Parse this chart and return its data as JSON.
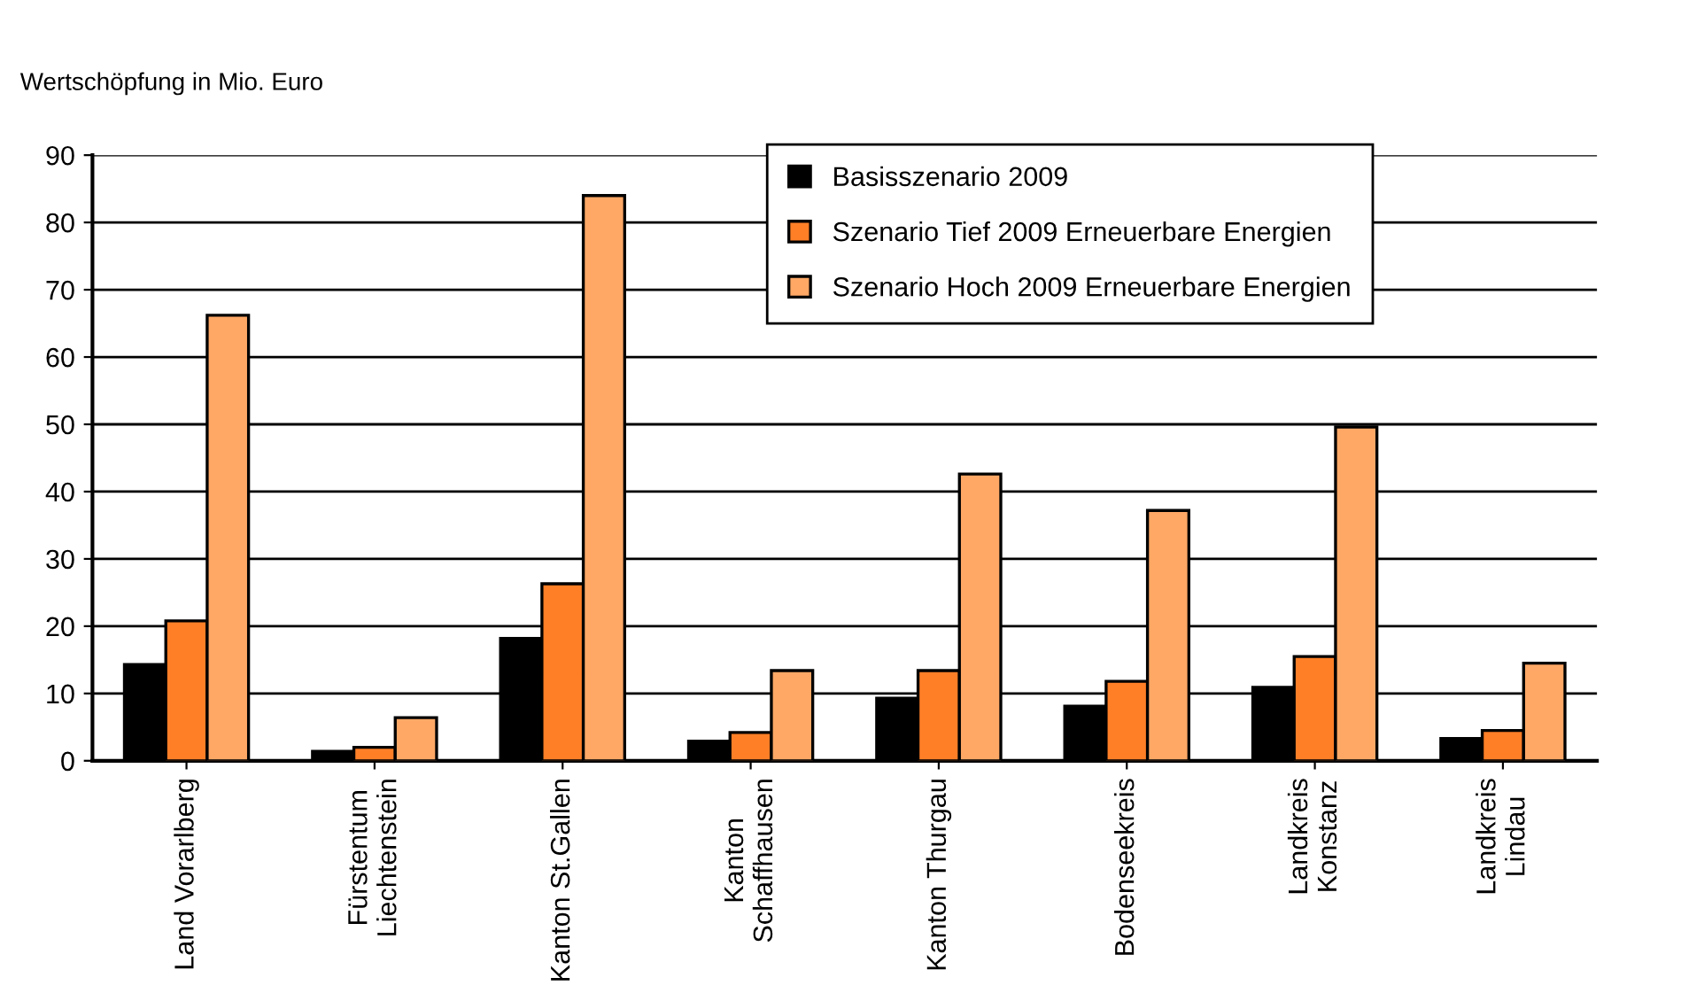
{
  "chart_data": {
    "type": "bar",
    "ylabel": "Wertschöpfung in Mio. Euro",
    "categories": [
      "Land Vorarlberg",
      "Fürstentum\nLiechtenstein",
      "Kanton St.Gallen",
      "Kanton\nSchaffhausen",
      "Kanton Thurgau",
      "Bodenseekreis",
      "Landkreis\nKonstanz",
      "Landkreis\nLindau"
    ],
    "series": [
      {
        "name": "Basisszenario 2009",
        "color": "#000000",
        "values": [
          14.3,
          1.4,
          18.2,
          2.9,
          9.3,
          8.1,
          10.9,
          3.3
        ]
      },
      {
        "name": "Szenario Tief 2009 Erneuerbare Energien",
        "color": "#ff7f27",
        "values": [
          20.8,
          2.0,
          26.3,
          4.2,
          13.4,
          11.8,
          15.5,
          4.5
        ]
      },
      {
        "name": "Szenario Hoch 2009 Erneuerbare Energien",
        "color": "#ffa866",
        "values": [
          66.2,
          6.4,
          84.0,
          13.4,
          42.6,
          37.2,
          49.6,
          14.5
        ]
      }
    ],
    "ylim": [
      0,
      90
    ],
    "yticks": [
      0,
      10,
      20,
      30,
      40,
      50,
      60,
      70,
      80,
      90
    ],
    "grid": "y",
    "legend": "top right"
  }
}
